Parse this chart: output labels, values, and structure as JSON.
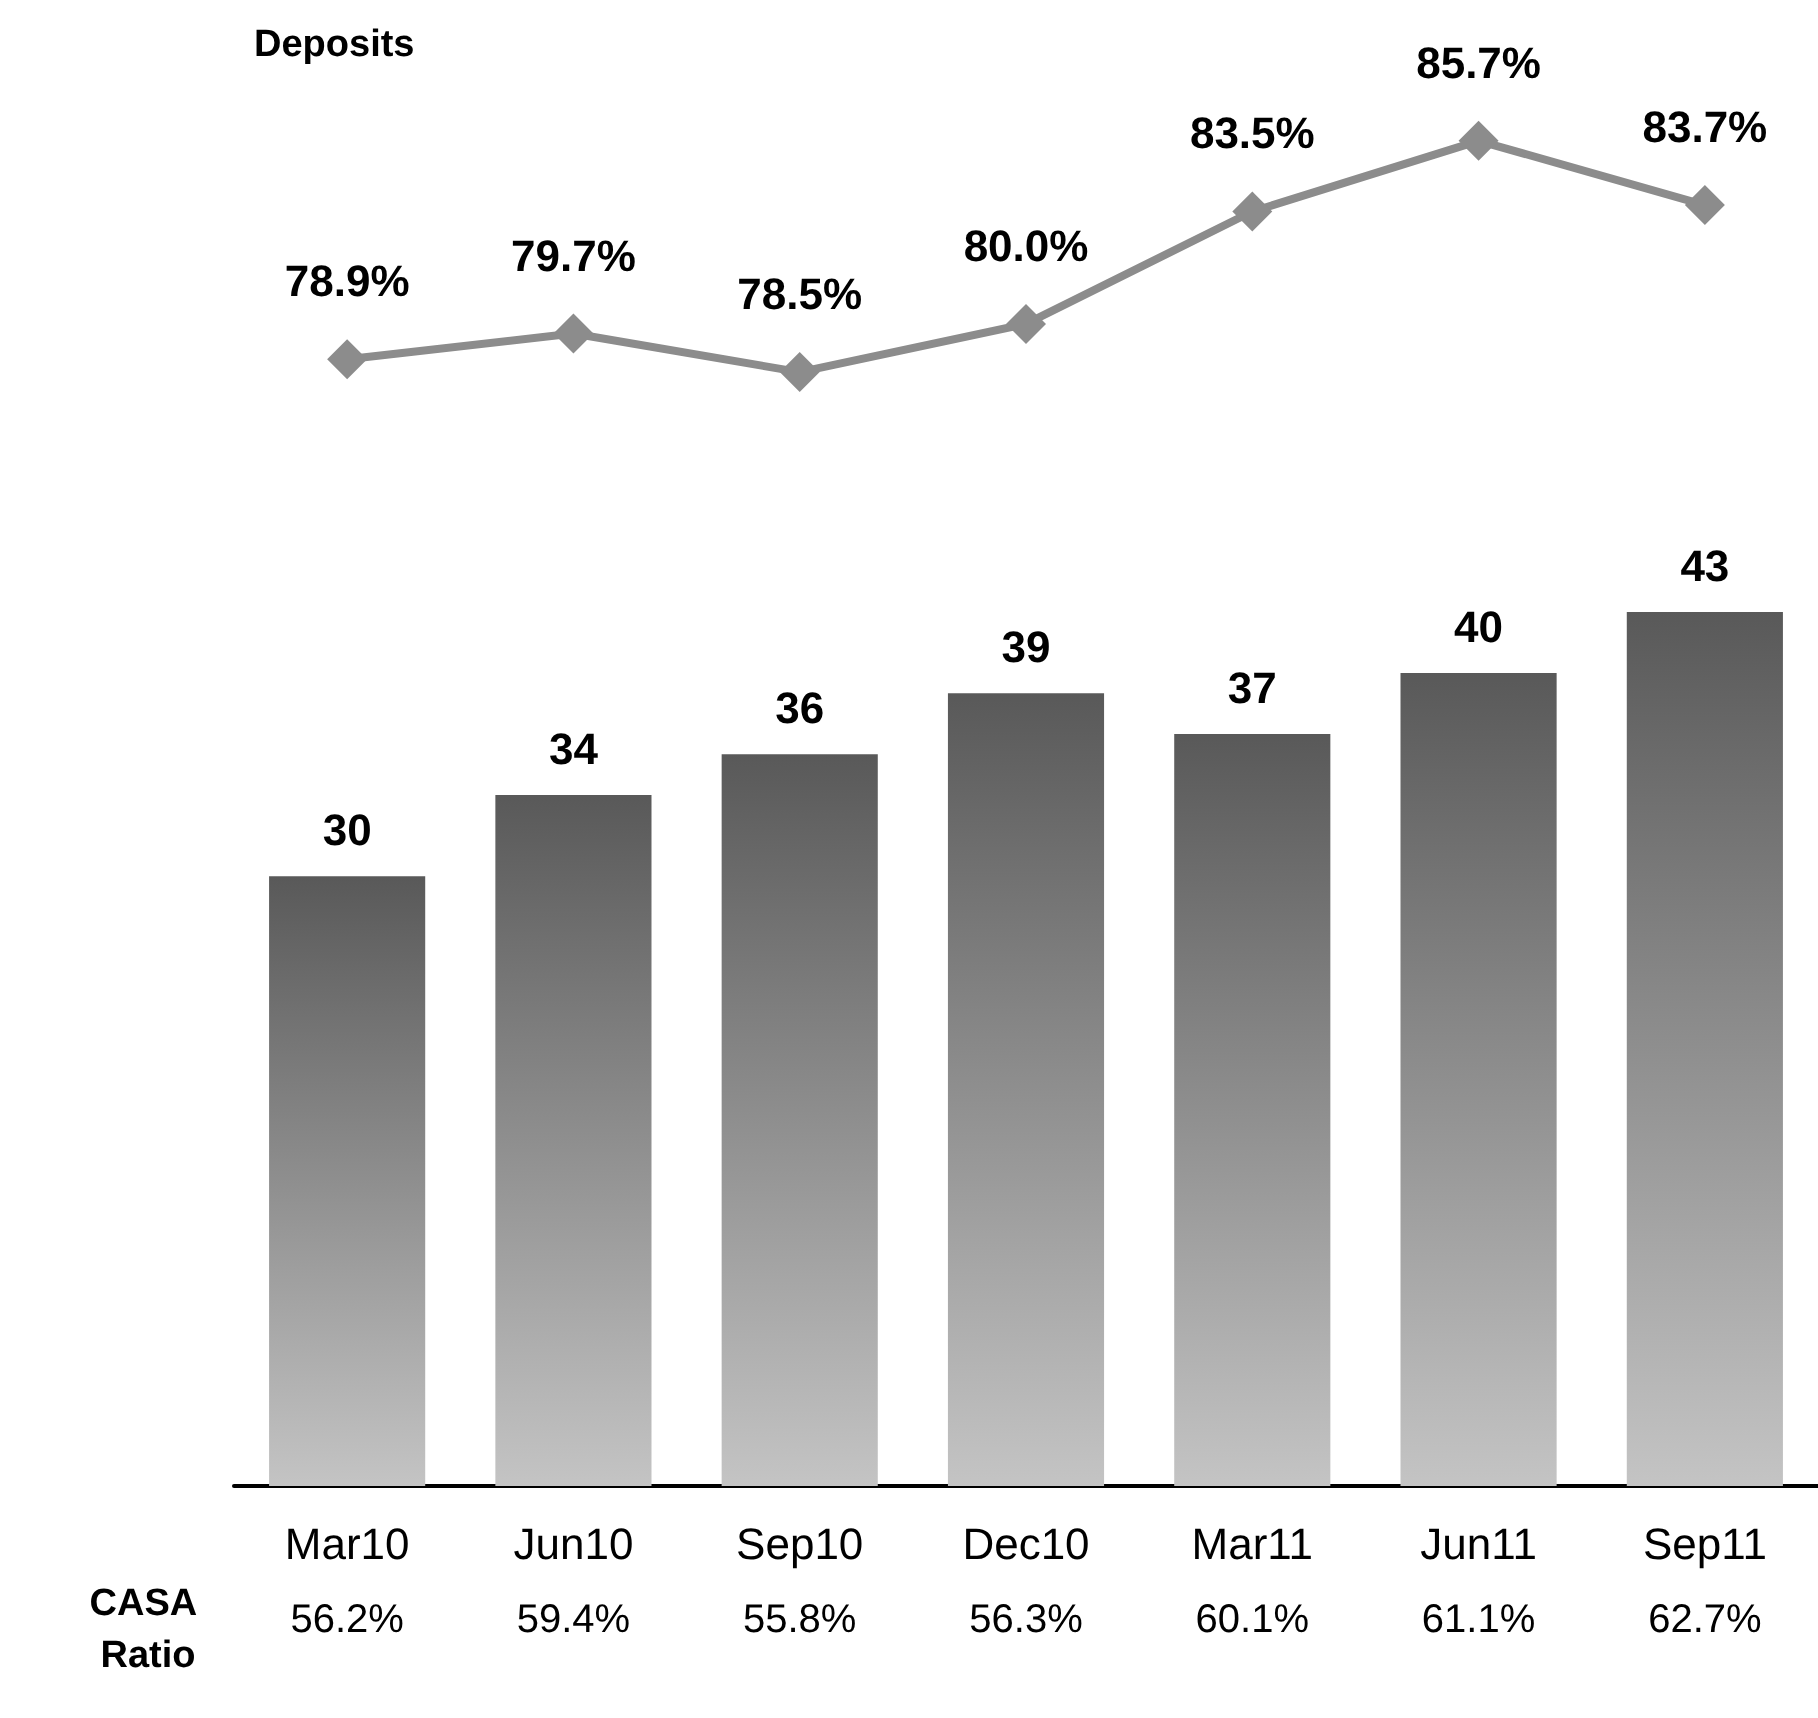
{
  "chart_data": [
    {
      "type": "line",
      "title": "Deposits",
      "categories": [
        null,
        null,
        null,
        null,
        null,
        null,
        null
      ],
      "series": [
        {
          "color": "#8c8c8c",
          "values": [
            78.9,
            79.7,
            78.5,
            80.0,
            83.5,
            85.7,
            83.7
          ],
          "value_labels": [
            "78.9%",
            "79.7%",
            "78.5%",
            "80.0%",
            "83.5%",
            "85.7%",
            "83.7%"
          ]
        }
      ],
      "tick_labels": false,
      "marker": "diamond",
      "line_style": "solid"
    },
    {
      "type": "bar",
      "categories": [
        "Mar10",
        "Jun10",
        "Sep10",
        "Dec10",
        "Mar11",
        "Jun11",
        "Sep11"
      ],
      "series": [
        {
          "color": "#595959",
          "values": [
            30,
            34,
            36,
            39,
            37,
            40,
            43
          ]
        }
      ],
      "tick_labels": "x",
      "data_labels": true,
      "annotations": [
        "CASA Ratio",
        "56.2%",
        "59.4%",
        "55.8%",
        "56.3%",
        "60.1%",
        "61.1%",
        "62.7%"
      ]
    }
  ]
}
